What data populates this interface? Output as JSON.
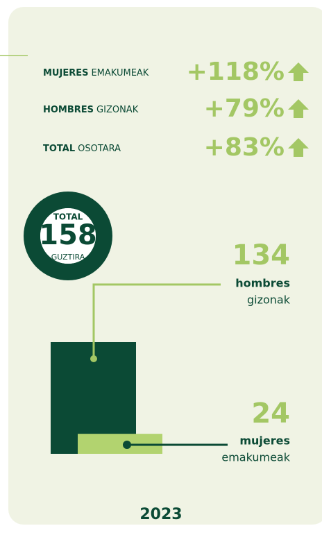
{
  "stats": [
    {
      "label_es": "MUJERES",
      "label_eu": "EMAKUMEAK",
      "change": "+118%"
    },
    {
      "label_es": "HOMBRES",
      "label_eu": "GIZONAK",
      "change": "+79%"
    },
    {
      "label_es": "TOTAL",
      "label_eu": "OSOTARA",
      "change": "+83%"
    }
  ],
  "total": {
    "label_es": "TOTAL",
    "value": 158,
    "label_eu": "GUZTIRA"
  },
  "groups": [
    {
      "value": 134,
      "label_es": "hombres",
      "label_eu": "gizonak"
    },
    {
      "value": 24,
      "label_es": "mujeres",
      "label_eu": "emakumeak"
    }
  ],
  "year": "2023"
}
